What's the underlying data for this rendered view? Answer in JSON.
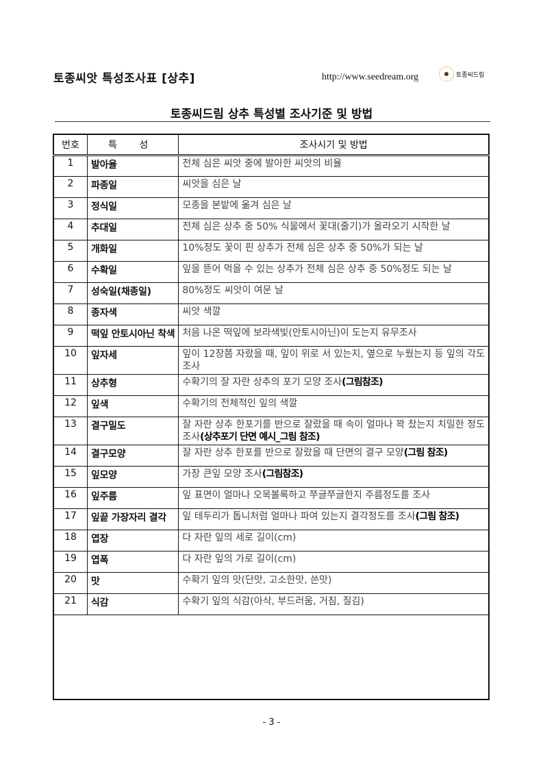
{
  "header": {
    "title": "토종씨앗 특성조사표 [상추]",
    "url": "http://www.seedream.org",
    "logo_text": "토종씨드림"
  },
  "subtitle": "토종씨드림 상추 특성별 조사기준 및 방법",
  "table": {
    "columns": [
      "번호",
      "특 성",
      "조사시기 및 방법"
    ],
    "rows": [
      {
        "num": "1",
        "name": "발아율",
        "desc": "전체 심은 씨앗 중에 발아한 씨앗의 비율",
        "note": ""
      },
      {
        "num": "2",
        "name": "파종일",
        "desc": "씨앗을 심은 날",
        "note": ""
      },
      {
        "num": "3",
        "name": "정식일",
        "desc": "모종을 본밭에 옮겨 심은 날",
        "note": ""
      },
      {
        "num": "4",
        "name": "추대일",
        "desc": "전체 심은 상추 중 50% 식물에서 꽃대(줄기)가 올라오기 시작한 날",
        "note": ""
      },
      {
        "num": "5",
        "name": "개화일",
        "desc": "10%정도 꽃이 핀 상추가 전체 심은 상추 중 50%가 되는 날",
        "note": ""
      },
      {
        "num": "6",
        "name": "수확일",
        "desc": "잎을 뜯어 먹을 수 있는 상추가 전체 심은 상추 중 50%정도 되는 날",
        "note": ""
      },
      {
        "num": "7",
        "name": "성숙일(채종일)",
        "desc": "80%정도 씨앗이 여문 날",
        "note": ""
      },
      {
        "num": "8",
        "name": "종자색",
        "desc": "씨앗 색깔",
        "note": ""
      },
      {
        "num": "9",
        "name": "떡잎 안토시아닌 착색",
        "desc": "처음 나온 떡잎에 보라색빛(안토시아닌)이 도는지 유무조사",
        "note": ""
      },
      {
        "num": "10",
        "name": "잎자세",
        "desc": "잎이 12장쯤 자랐을 때, 잎이 위로 서 있는지, 옆으로 누웠는지 등 잎의 각도 조사",
        "note": ""
      },
      {
        "num": "11",
        "name": "상추형",
        "desc": "수확기의 잘 자란 상추의 포기 모양 조사",
        "note": "(그림참조)"
      },
      {
        "num": "12",
        "name": "잎색",
        "desc": "수확기의 전체적인 잎의 색깔",
        "note": ""
      },
      {
        "num": "13",
        "name": "결구밀도",
        "desc": "잘 자란 상추 한포기를 반으로 잘랐을 때 속이 얼마나 꽉 찼는지 치밀한 정도 조사",
        "note": "(상추포기 단면 예시_그림 참조)"
      },
      {
        "num": "14",
        "name": "결구모양",
        "desc": "잘 자란 상추 한포를 반으로 잘랐을 때 단면의 결구 모양",
        "note": "(그림 참조)"
      },
      {
        "num": "15",
        "name": "잎모양",
        "desc": "가장 큰잎 모양 조사",
        "note": "(그림참조)"
      },
      {
        "num": "16",
        "name": "잎주름",
        "desc": "잎 표면이 얼마나 오목볼록하고 쭈글쭈글한지 주름정도를 조사",
        "note": ""
      },
      {
        "num": "17",
        "name": "잎끝 가장자리 결각",
        "desc": "잎 테두리가 톱니처럼 얼마나 파여 있는지 결각정도를 조사",
        "note": "(그림 참조)"
      },
      {
        "num": "18",
        "name": "엽장",
        "desc": "다 자란 잎의 세로 길이(cm)",
        "note": ""
      },
      {
        "num": "19",
        "name": "엽폭",
        "desc": "다 자란 잎의 가로 길이(cm)",
        "note": ""
      },
      {
        "num": "20",
        "name": "맛",
        "desc": "수확기 잎의 맛(단맛, 고소한맛, 쓴맛)",
        "note": ""
      },
      {
        "num": "21",
        "name": "식감",
        "desc": "수확기 잎의 식감(아삭, 부드러움, 거침, 질김)",
        "note": ""
      }
    ]
  },
  "footer": {
    "page": "- 3 -"
  }
}
